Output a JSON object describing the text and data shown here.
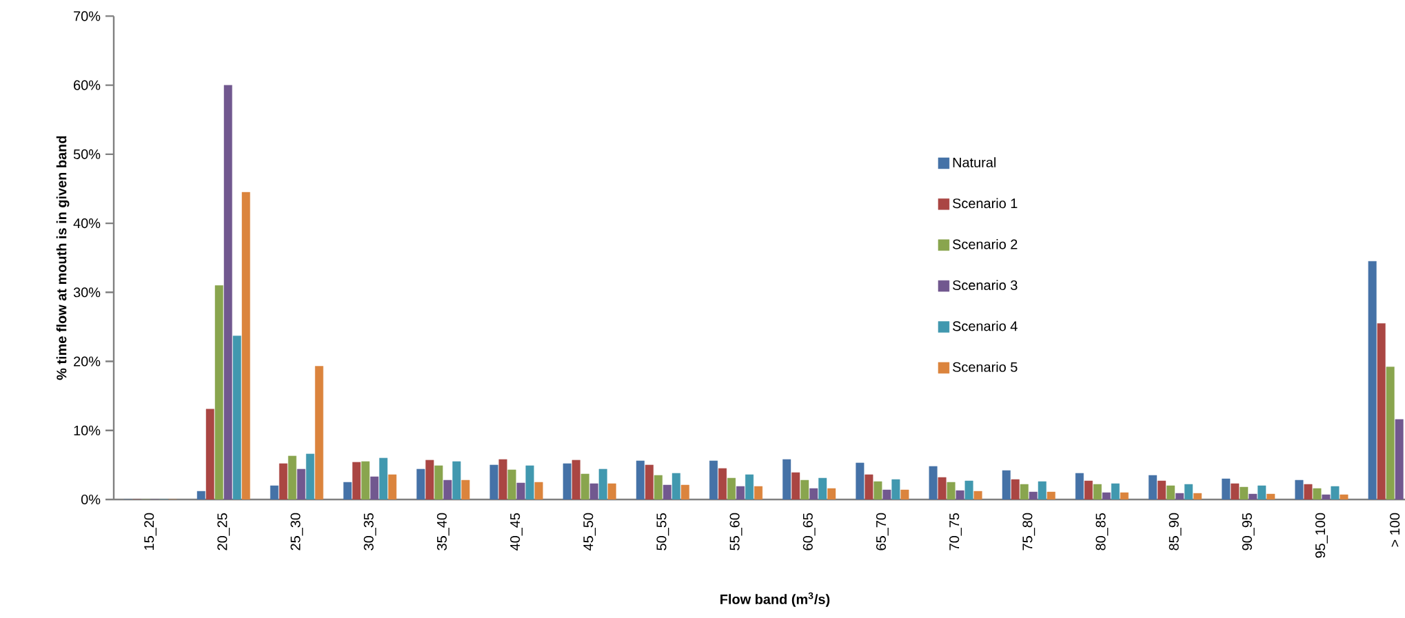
{
  "chart_data": {
    "type": "bar",
    "xlabel": "Flow band (m$^{3}$/s)",
    "ylabel": "% time flow at mouth is in given band",
    "categories": [
      "15_20",
      "20_25",
      "25_30",
      "30_35",
      "35_40",
      "40_45",
      "45_50",
      "50_55",
      "55_60",
      "60_65",
      "65_70",
      "70_75",
      "75_80",
      "80_85",
      "85_90",
      "90_95",
      "95_100",
      "> 100"
    ],
    "ylim": [
      0,
      70
    ],
    "yticks": [
      {
        "value": 0,
        "label": "0%"
      },
      {
        "value": 10,
        "label": "10%"
      },
      {
        "value": 20,
        "label": "20%"
      },
      {
        "value": 30,
        "label": "30%"
      },
      {
        "value": 40,
        "label": "40%"
      },
      {
        "value": 50,
        "label": "50%"
      },
      {
        "value": 60,
        "label": "60%"
      },
      {
        "value": 70,
        "label": "70%"
      }
    ],
    "grid": false,
    "legend": "right",
    "series": [
      {
        "name": "Natural",
        "color": "#4572a7",
        "values": [
          0,
          1.2,
          2.0,
          2.5,
          4.4,
          5.0,
          5.2,
          5.6,
          5.6,
          5.8,
          5.3,
          4.8,
          4.2,
          3.8,
          3.5,
          3.0,
          2.8,
          34.5
        ]
      },
      {
        "name": "Scenario 1",
        "color": "#aa4643",
        "values": [
          0,
          13.1,
          5.2,
          5.4,
          5.7,
          5.8,
          5.7,
          5.0,
          4.5,
          3.9,
          3.6,
          3.2,
          2.9,
          2.7,
          2.7,
          2.3,
          2.2,
          25.5
        ]
      },
      {
        "name": "Scenario 2",
        "color": "#89a54e",
        "values": [
          0,
          31.0,
          6.3,
          5.5,
          4.9,
          4.3,
          3.7,
          3.5,
          3.1,
          2.8,
          2.6,
          2.5,
          2.2,
          2.2,
          2.0,
          1.8,
          1.6,
          19.2
        ]
      },
      {
        "name": "Scenario 3",
        "color": "#71588f",
        "values": [
          0,
          60.0,
          4.4,
          3.3,
          2.8,
          2.4,
          2.3,
          2.1,
          1.9,
          1.6,
          1.4,
          1.3,
          1.1,
          1.0,
          0.9,
          0.8,
          0.7,
          11.6
        ]
      },
      {
        "name": "Scenario 4",
        "color": "#4198af",
        "values": [
          0,
          23.7,
          6.6,
          6.0,
          5.5,
          4.9,
          4.4,
          3.8,
          3.6,
          3.1,
          2.9,
          2.7,
          2.6,
          2.3,
          2.2,
          2.0,
          1.9,
          null
        ]
      },
      {
        "name": "Scenario 5",
        "color": "#db843d",
        "values": [
          0,
          44.5,
          19.3,
          3.6,
          2.8,
          2.5,
          2.3,
          2.1,
          1.9,
          1.6,
          1.4,
          1.2,
          1.1,
          1.0,
          0.9,
          0.8,
          0.7,
          null
        ]
      }
    ]
  }
}
